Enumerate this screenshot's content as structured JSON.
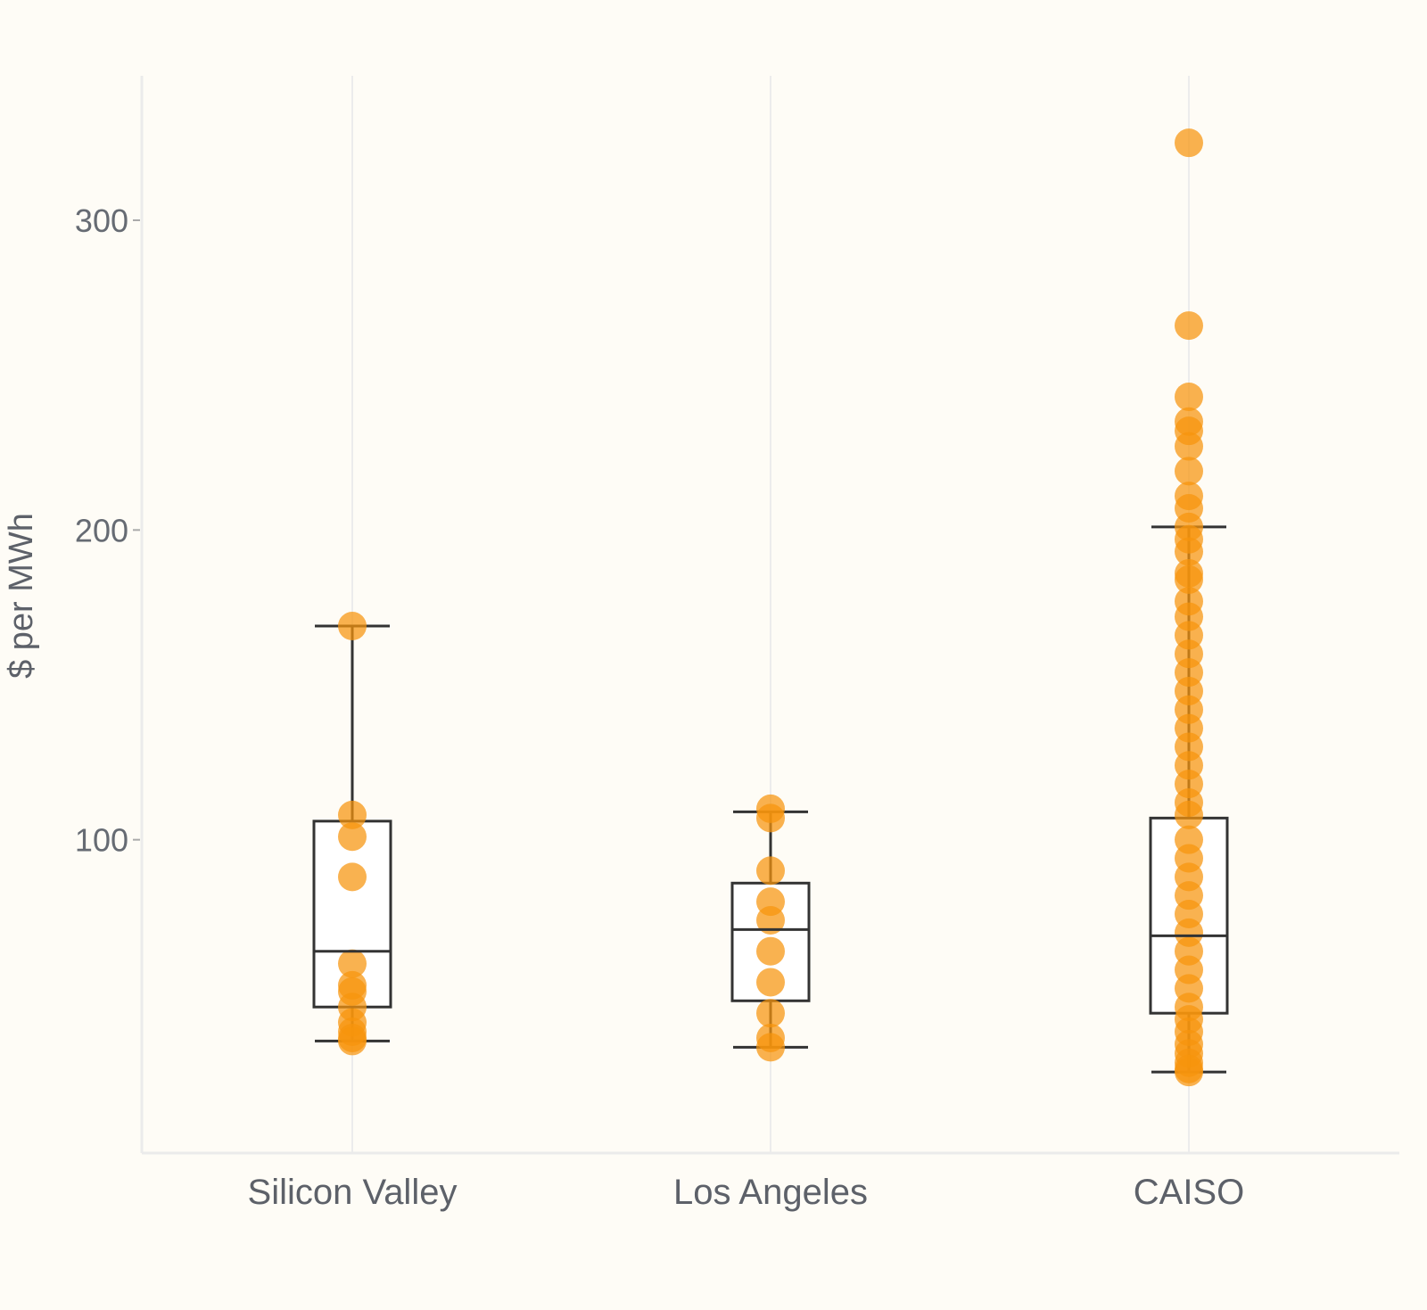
{
  "chart_data": {
    "type": "box",
    "ylabel": "$ per MWh",
    "xlabel": "",
    "ylim": [
      0,
      347
    ],
    "yticks": [
      100,
      200,
      300
    ],
    "grid": true,
    "categories": [
      "Silicon Valley",
      "Los Angeles",
      "CAISO"
    ],
    "colors": {
      "point": "#f7940c",
      "box_fill": "#ffffff",
      "box_stroke": "#333333"
    },
    "boxes": [
      {
        "category": "Silicon Valley",
        "lower_whisker": 35,
        "q1": 46,
        "median": 64,
        "q3": 106,
        "upper_whisker": 169
      },
      {
        "category": "Los Angeles",
        "lower_whisker": 33,
        "q1": 48,
        "median": 71,
        "q3": 86,
        "upper_whisker": 109
      },
      {
        "category": "CAISO",
        "lower_whisker": 25,
        "q1": 44,
        "median": 69,
        "q3": 107,
        "upper_whisker": 201
      }
    ],
    "points": [
      {
        "category": "Silicon Valley",
        "values": [
          169,
          108,
          101,
          88,
          60,
          53,
          51,
          46,
          41,
          38,
          36,
          35
        ]
      },
      {
        "category": "Los Angeles",
        "values": [
          110,
          107,
          90,
          80,
          74,
          64,
          54,
          44,
          36,
          33
        ]
      },
      {
        "category": "CAISO",
        "values": [
          325,
          266,
          243,
          235,
          232,
          227,
          219,
          211,
          207,
          201,
          197,
          193,
          186,
          184,
          177,
          172,
          166,
          160,
          154,
          148,
          142,
          136,
          130,
          124,
          118,
          112,
          108,
          100,
          94,
          88,
          82,
          76,
          70,
          64,
          58,
          52,
          46,
          42,
          38,
          34,
          31,
          28,
          26,
          25
        ]
      }
    ]
  }
}
